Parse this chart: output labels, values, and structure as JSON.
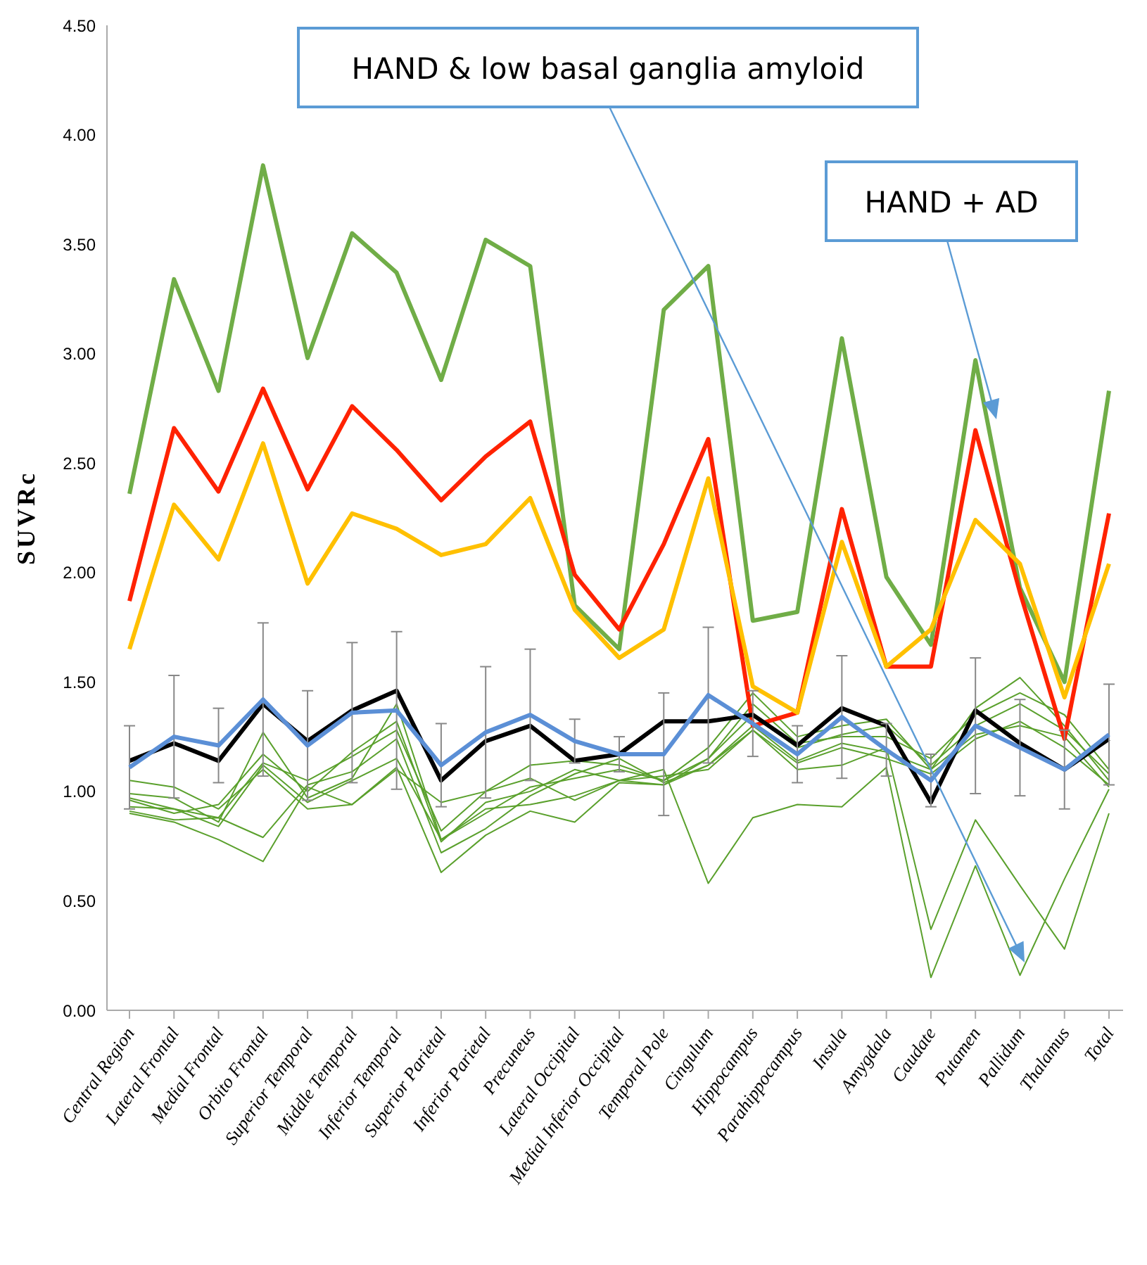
{
  "chart_data": {
    "type": "line",
    "ylabel": "SUVRc",
    "categories": [
      "Central Region",
      "Lateral Frontal",
      "Medial Frontal",
      "Orbito Frontal",
      "Superior Temporal",
      "Middle Temporal",
      "Inferior Temporal",
      "Superior Parietal",
      "Inferior Parietal",
      "Precuneus",
      "Lateral Occipital",
      "Medial Inferior Occipital",
      "Temporal Pole",
      "Cingulum",
      "Hippocampus",
      "Parahippocampus",
      "Insula",
      "Amygdala",
      "Caudate",
      "Putamen",
      "Pallidum",
      "Thalamus",
      "Total"
    ],
    "ylim": [
      0,
      4.5
    ],
    "yticks": [
      {
        "value": 0,
        "label": "0.00"
      },
      {
        "value": 0.5,
        "label": "0.50"
      },
      {
        "value": 1,
        "label": "1.00"
      },
      {
        "value": 1.5,
        "label": "1.50"
      },
      {
        "value": 2,
        "label": "2.00"
      },
      {
        "value": 2.5,
        "label": "2.50"
      },
      {
        "value": 3,
        "label": "3.00"
      },
      {
        "value": 3.5,
        "label": "3.50"
      },
      {
        "value": 4,
        "label": "4.00"
      },
      {
        "value": 4.5,
        "label": "4.50"
      }
    ],
    "marker": "none",
    "line_style": "solid",
    "series": [
      {
        "color": "#5aa02c",
        "values": [
          0.99,
          0.97,
          0.86,
          1.27,
          0.97,
          1.06,
          1.4,
          0.78,
          0.9,
          1.02,
          1.06,
          1.1,
          1.05,
          1.2,
          1.45,
          1.25,
          1.3,
          1.33,
          1.1,
          1.38,
          1.52,
          1.3,
          1.05
        ]
      },
      {
        "color": "#5aa02c",
        "values": [
          0.96,
          0.9,
          0.94,
          1.17,
          1.0,
          1.18,
          1.32,
          0.77,
          0.95,
          1.0,
          1.1,
          1.05,
          1.03,
          1.15,
          1.4,
          1.22,
          1.25,
          1.25,
          1.15,
          1.35,
          1.45,
          1.35,
          1.1
        ]
      },
      {
        "color": "#5aa02c",
        "values": [
          0.93,
          0.92,
          0.88,
          1.13,
          1.05,
          1.16,
          1.28,
          0.82,
          1.0,
          1.12,
          1.14,
          1.12,
          1.05,
          1.15,
          1.35,
          1.2,
          1.26,
          1.3,
          1.12,
          1.3,
          1.4,
          1.28,
          1.08
        ]
      },
      {
        "color": "#5aa02c",
        "values": [
          0.91,
          0.87,
          0.88,
          0.79,
          1.03,
          1.09,
          1.24,
          0.72,
          0.83,
          0.98,
          1.08,
          1.15,
          1.04,
          1.12,
          1.3,
          1.14,
          1.22,
          1.18,
          1.1,
          1.26,
          1.3,
          1.25,
          1.02
        ]
      },
      {
        "color": "#5aa02c",
        "values": [
          0.9,
          0.86,
          0.78,
          0.68,
          1.02,
          0.94,
          1.11,
          0.63,
          0.8,
          0.91,
          0.86,
          1.04,
          1.03,
          1.12,
          1.28,
          1.13,
          1.2,
          1.15,
          1.08,
          1.24,
          1.32,
          1.2,
          1.03
        ]
      },
      {
        "color": "#5aa02c",
        "values": [
          1.05,
          1.02,
          0.92,
          1.1,
          0.92,
          0.94,
          1.1,
          0.95,
          1.0,
          1.06,
          0.96,
          1.05,
          1.07,
          1.1,
          1.28,
          1.1,
          1.12,
          1.2,
          0.37,
          0.87,
          0.57,
          0.28,
          0.9
        ]
      },
      {
        "color": "#5aa02c",
        "values": [
          0.97,
          0.92,
          0.84,
          1.12,
          0.95,
          1.05,
          1.15,
          0.78,
          0.92,
          0.94,
          0.98,
          1.05,
          1.1,
          0.58,
          0.88,
          0.94,
          0.93,
          1.11,
          0.15,
          0.66,
          0.16,
          0.6,
          1.01
        ]
      },
      {
        "color": "#70ad47",
        "values": [
          2.36,
          3.34,
          2.83,
          3.86,
          2.98,
          3.55,
          3.37,
          2.88,
          3.52,
          3.4,
          1.85,
          1.65,
          3.2,
          3.4,
          1.78,
          1.82,
          3.07,
          1.98,
          1.67,
          2.97,
          1.93,
          1.5,
          2.83
        ]
      },
      {
        "color": "#ff2200",
        "values": [
          1.87,
          2.66,
          2.37,
          2.84,
          2.38,
          2.76,
          2.56,
          2.33,
          2.53,
          2.69,
          1.99,
          1.74,
          2.13,
          2.61,
          1.3,
          1.36,
          2.29,
          1.57,
          1.57,
          2.65,
          1.91,
          1.24,
          2.27
        ]
      },
      {
        "color": "#ffc000",
        "values": [
          1.65,
          2.31,
          2.06,
          2.59,
          1.95,
          2.27,
          2.2,
          2.08,
          2.13,
          2.34,
          1.83,
          1.61,
          1.74,
          2.43,
          1.48,
          1.36,
          2.14,
          1.57,
          1.74,
          2.24,
          2.04,
          1.43,
          2.04
        ]
      },
      {
        "color": "#000000",
        "values": [
          1.14,
          1.22,
          1.14,
          1.4,
          1.23,
          1.37,
          1.46,
          1.05,
          1.23,
          1.3,
          1.14,
          1.17,
          1.32,
          1.32,
          1.35,
          1.21,
          1.38,
          1.3,
          0.95,
          1.37,
          1.22,
          1.1,
          1.24
        ]
      },
      {
        "color": "#5b8fd6",
        "values": [
          1.11,
          1.25,
          1.21,
          1.42,
          1.21,
          1.36,
          1.37,
          1.12,
          1.27,
          1.35,
          1.23,
          1.17,
          1.17,
          1.44,
          1.31,
          1.17,
          1.34,
          1.19,
          1.05,
          1.3,
          1.2,
          1.1,
          1.26
        ],
        "errors": [
          0.19,
          0.28,
          0.17,
          0.35,
          0.25,
          0.32,
          0.36,
          0.19,
          0.3,
          0.3,
          0.1,
          0.08,
          0.28,
          0.31,
          0.15,
          0.13,
          0.28,
          0.12,
          0.12,
          0.31,
          0.22,
          0.18,
          0.23
        ]
      }
    ],
    "annotations": [
      "HAND & low basal ganglia amyloid",
      "HAND + AD"
    ]
  }
}
